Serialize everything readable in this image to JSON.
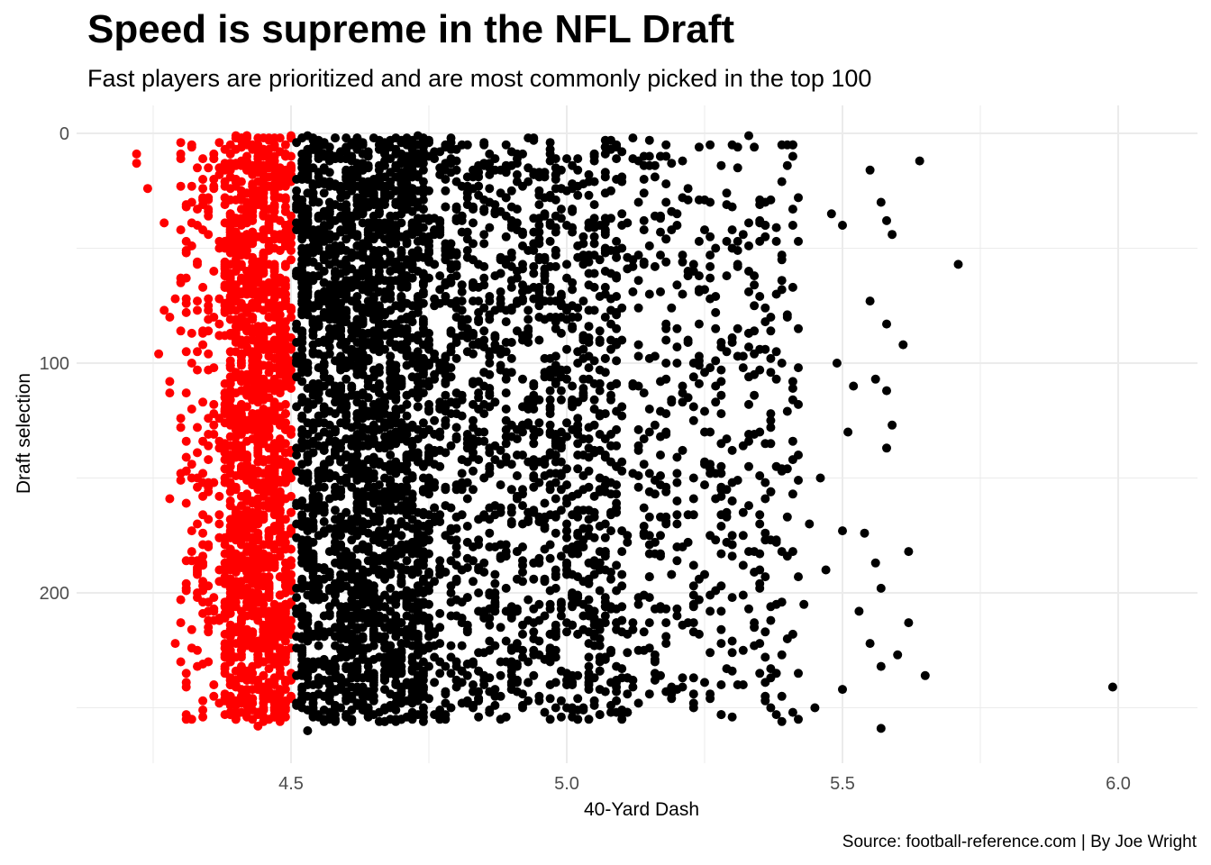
{
  "title": "Speed is supreme in the NFL Draft",
  "subtitle": "Fast players are prioritized and are most commonly picked in the top 100",
  "caption": "Source: football-reference.com | By Joe Wright",
  "colors": {
    "fast": "#ff0000",
    "slow": "#000000",
    "grid": "#ebebeb",
    "background": "#ffffff"
  },
  "chart_data": {
    "type": "scatter",
    "xlabel": "40-Yard Dash",
    "ylabel": "Draft selection",
    "xlim": [
      4.17,
      6.15
    ],
    "ylim": [
      0,
      262
    ],
    "y_reversed": true,
    "x_ticks": [
      "4.5",
      "5.0",
      "5.5",
      "6.0"
    ],
    "y_ticks": [
      "0",
      "100",
      "200"
    ],
    "grid": true,
    "highlight_rule": "40-yard dash <= 4.50 drawn in red",
    "series": [
      {
        "color": "#ff0000",
        "points": [
          [
            4.22,
            9
          ],
          [
            4.22,
            13
          ],
          [
            4.24,
            24
          ],
          [
            4.27,
            39
          ],
          [
            4.27,
            77
          ],
          [
            4.28,
            80
          ],
          [
            4.26,
            96
          ],
          [
            4.28,
            108
          ],
          [
            4.28,
            113
          ],
          [
            4.3,
            124
          ],
          [
            4.28,
            159
          ],
          [
            4.29,
            222
          ],
          [
            4.31,
            241
          ],
          [
            4.31,
            253
          ],
          [
            4.31,
            255
          ],
          [
            4.3,
            63
          ],
          [
            4.29,
            72
          ],
          [
            4.32,
            120
          ],
          [
            4.33,
            150
          ],
          [
            4.33,
            170
          ],
          [
            4.34,
            188
          ],
          [
            4.35,
            230
          ],
          [
            4.36,
            212
          ],
          [
            4.32,
            5
          ],
          [
            4.33,
            15
          ],
          [
            4.34,
            28
          ],
          [
            4.35,
            44
          ],
          [
            4.36,
            60
          ],
          [
            4.37,
            88
          ],
          [
            4.37,
            134
          ],
          [
            4.38,
            176
          ],
          [
            4.38,
            196
          ],
          [
            4.39,
            240
          ],
          [
            4.36,
            102
          ],
          [
            4.35,
            152
          ],
          [
            4.34,
            166
          ],
          [
            4.31,
            186
          ],
          [
            4.37,
            158
          ],
          [
            4.33,
            128
          ],
          [
            4.32,
            100
          ],
          [
            4.42,
            12
          ],
          [
            4.45,
            35
          ],
          [
            4.47,
            58
          ],
          [
            4.43,
            80
          ],
          [
            4.48,
            105
          ],
          [
            4.41,
            140
          ],
          [
            4.46,
            160
          ],
          [
            4.44,
            190
          ],
          [
            4.49,
            215
          ],
          [
            4.42,
            245
          ],
          [
            4.4,
            255
          ],
          [
            4.47,
            250
          ],
          [
            4.45,
            230
          ],
          [
            4.43,
            205
          ],
          [
            4.41,
            175
          ],
          [
            4.49,
            150
          ],
          [
            4.44,
            125
          ],
          [
            4.46,
            95
          ],
          [
            4.42,
            70
          ],
          [
            4.48,
            45
          ],
          [
            4.4,
            20
          ],
          [
            4.47,
            5
          ],
          [
            4.45,
            110
          ],
          [
            4.43,
            30
          ],
          [
            4.49,
            180
          ],
          [
            4.41,
            220
          ],
          [
            4.46,
            240
          ],
          [
            4.44,
            258
          ],
          [
            4.48,
            235
          ],
          [
            4.42,
            198
          ]
        ]
      },
      {
        "color": "#000000",
        "points": [
          [
            4.52,
            2
          ],
          [
            4.55,
            30
          ],
          [
            4.6,
            60
          ],
          [
            4.65,
            90
          ],
          [
            4.7,
            120
          ],
          [
            4.75,
            150
          ],
          [
            4.8,
            180
          ],
          [
            4.85,
            210
          ],
          [
            4.9,
            240
          ],
          [
            4.58,
            250
          ],
          [
            4.53,
            260
          ],
          [
            4.62,
            15
          ],
          [
            4.68,
            45
          ],
          [
            4.72,
            75
          ],
          [
            4.78,
            105
          ],
          [
            4.82,
            135
          ],
          [
            4.88,
            165
          ],
          [
            4.92,
            195
          ],
          [
            4.97,
            225
          ],
          [
            5.02,
            255
          ],
          [
            5.05,
            10
          ],
          [
            5.1,
            40
          ],
          [
            5.15,
            70
          ],
          [
            5.2,
            100
          ],
          [
            5.25,
            130
          ],
          [
            5.3,
            160
          ],
          [
            5.35,
            190
          ],
          [
            5.4,
            220
          ],
          [
            5.45,
            250
          ],
          [
            5.08,
            25
          ],
          [
            5.12,
            55
          ],
          [
            5.18,
            85
          ],
          [
            5.22,
            115
          ],
          [
            5.28,
            145
          ],
          [
            5.32,
            175
          ],
          [
            5.38,
            205
          ],
          [
            5.42,
            235
          ],
          [
            5.03,
            140
          ],
          [
            4.95,
            80
          ],
          [
            4.86,
            30
          ],
          [
            5.4,
            5
          ],
          [
            5.48,
            35
          ],
          [
            5.5,
            40
          ],
          [
            5.55,
            16
          ],
          [
            5.57,
            30
          ],
          [
            5.58,
            38
          ],
          [
            5.59,
            44
          ],
          [
            5.64,
            12
          ],
          [
            5.71,
            57
          ],
          [
            5.55,
            73
          ],
          [
            5.58,
            83
          ],
          [
            5.61,
            92
          ],
          [
            5.56,
            107
          ],
          [
            5.58,
            112
          ],
          [
            5.59,
            127
          ],
          [
            5.58,
            137
          ],
          [
            5.62,
            182
          ],
          [
            5.56,
            187
          ],
          [
            5.57,
            198
          ],
          [
            5.53,
            208
          ],
          [
            5.62,
            213
          ],
          [
            5.55,
            222
          ],
          [
            5.6,
            227
          ],
          [
            5.65,
            236
          ],
          [
            5.57,
            232
          ],
          [
            5.5,
            242
          ],
          [
            5.57,
            259
          ],
          [
            5.99,
            241
          ],
          [
            5.5,
            173
          ],
          [
            5.54,
            174
          ],
          [
            5.49,
            100
          ],
          [
            5.52,
            110
          ],
          [
            5.46,
            150
          ],
          [
            5.47,
            190
          ],
          [
            5.51,
            130
          ],
          [
            5.44,
            170
          ],
          [
            5.43,
            205
          ],
          [
            5.4,
            80
          ],
          [
            5.36,
            40
          ],
          [
            5.33,
            60
          ]
        ]
      }
    ],
    "random_fill": {
      "seed": 20240,
      "fast": {
        "count": 1500,
        "x_min": 4.38,
        "x_max": 4.5,
        "y_min": 1,
        "y_max": 256
      },
      "fast_sparse": {
        "count": 170,
        "x_min": 4.3,
        "x_max": 4.38,
        "y_min": 1,
        "y_max": 256
      },
      "slow": {
        "count": 2300,
        "x_min": 4.51,
        "x_max": 4.75,
        "y_min": 1,
        "y_max": 256
      },
      "slow_mid": {
        "count": 1300,
        "x_min": 4.75,
        "x_max": 5.1,
        "y_min": 1,
        "y_max": 256
      },
      "slow_tail": {
        "count": 470,
        "x_min": 5.1,
        "x_max": 5.42,
        "y_min": 1,
        "y_max": 256
      }
    }
  }
}
